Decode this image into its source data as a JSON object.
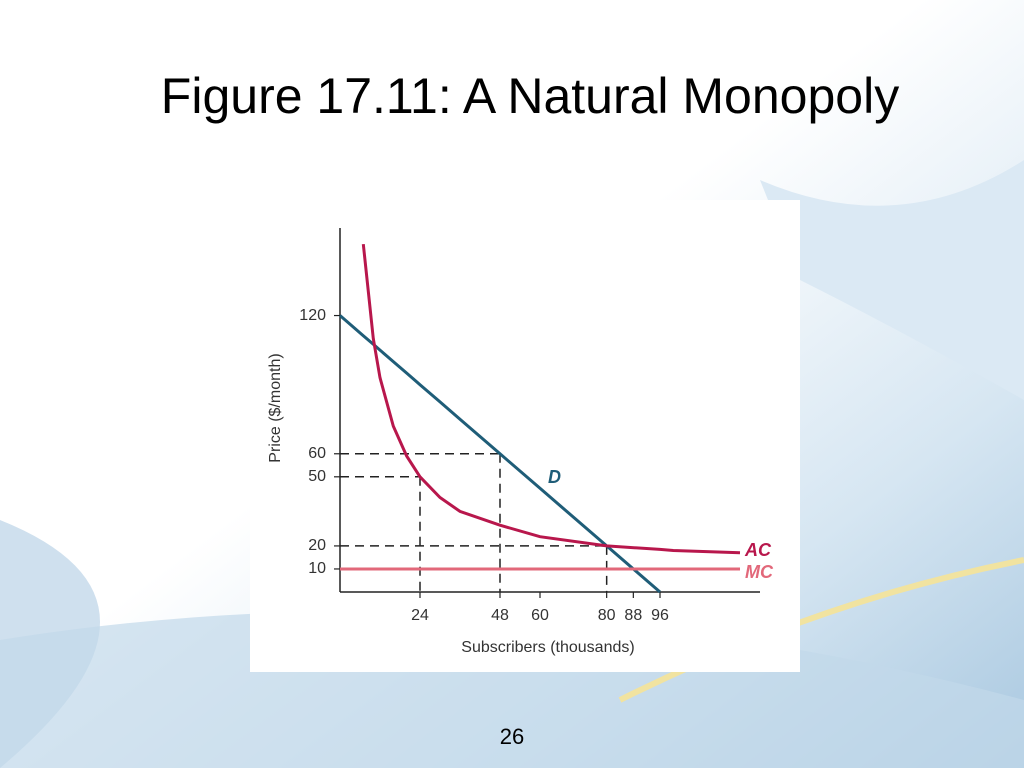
{
  "slide": {
    "title": "Figure 17.11: A Natural Monopoly",
    "page_number": "26"
  },
  "chart_data": {
    "type": "line",
    "x_label": "Subscribers (thousands)",
    "y_label": "Price ($/month)",
    "x": [
      0,
      7,
      10,
      12,
      16,
      20,
      24,
      30,
      36,
      48,
      60,
      80,
      96,
      100,
      120
    ],
    "series": [
      {
        "name": "D",
        "color": "#1f5d78",
        "values": [
          120,
          111.25,
          107.5,
          105,
          100,
          95,
          90,
          82.5,
          75,
          60,
          45,
          20,
          0,
          null,
          null
        ]
      },
      {
        "name": "AC",
        "color": "#b8174c",
        "values": [
          null,
          151,
          110,
          93,
          72,
          59,
          50,
          41,
          35,
          29,
          24,
          20,
          18.5,
          18,
          17
        ]
      },
      {
        "name": "MC",
        "color": "#e2687a",
        "values": [
          10,
          10,
          10,
          10,
          10,
          10,
          10,
          10,
          10,
          10,
          10,
          10,
          10,
          10,
          10
        ]
      }
    ],
    "guides": [
      {
        "x": 24,
        "y": 50
      },
      {
        "x": 48,
        "y": 60
      },
      {
        "x": 80,
        "y": 20
      }
    ],
    "xlim": [
      0,
      126
    ],
    "ylim": [
      0,
      158
    ],
    "xticks": [
      24,
      48,
      60,
      80,
      88,
      96
    ],
    "yticks": [
      10,
      20,
      50,
      60,
      120
    ]
  }
}
